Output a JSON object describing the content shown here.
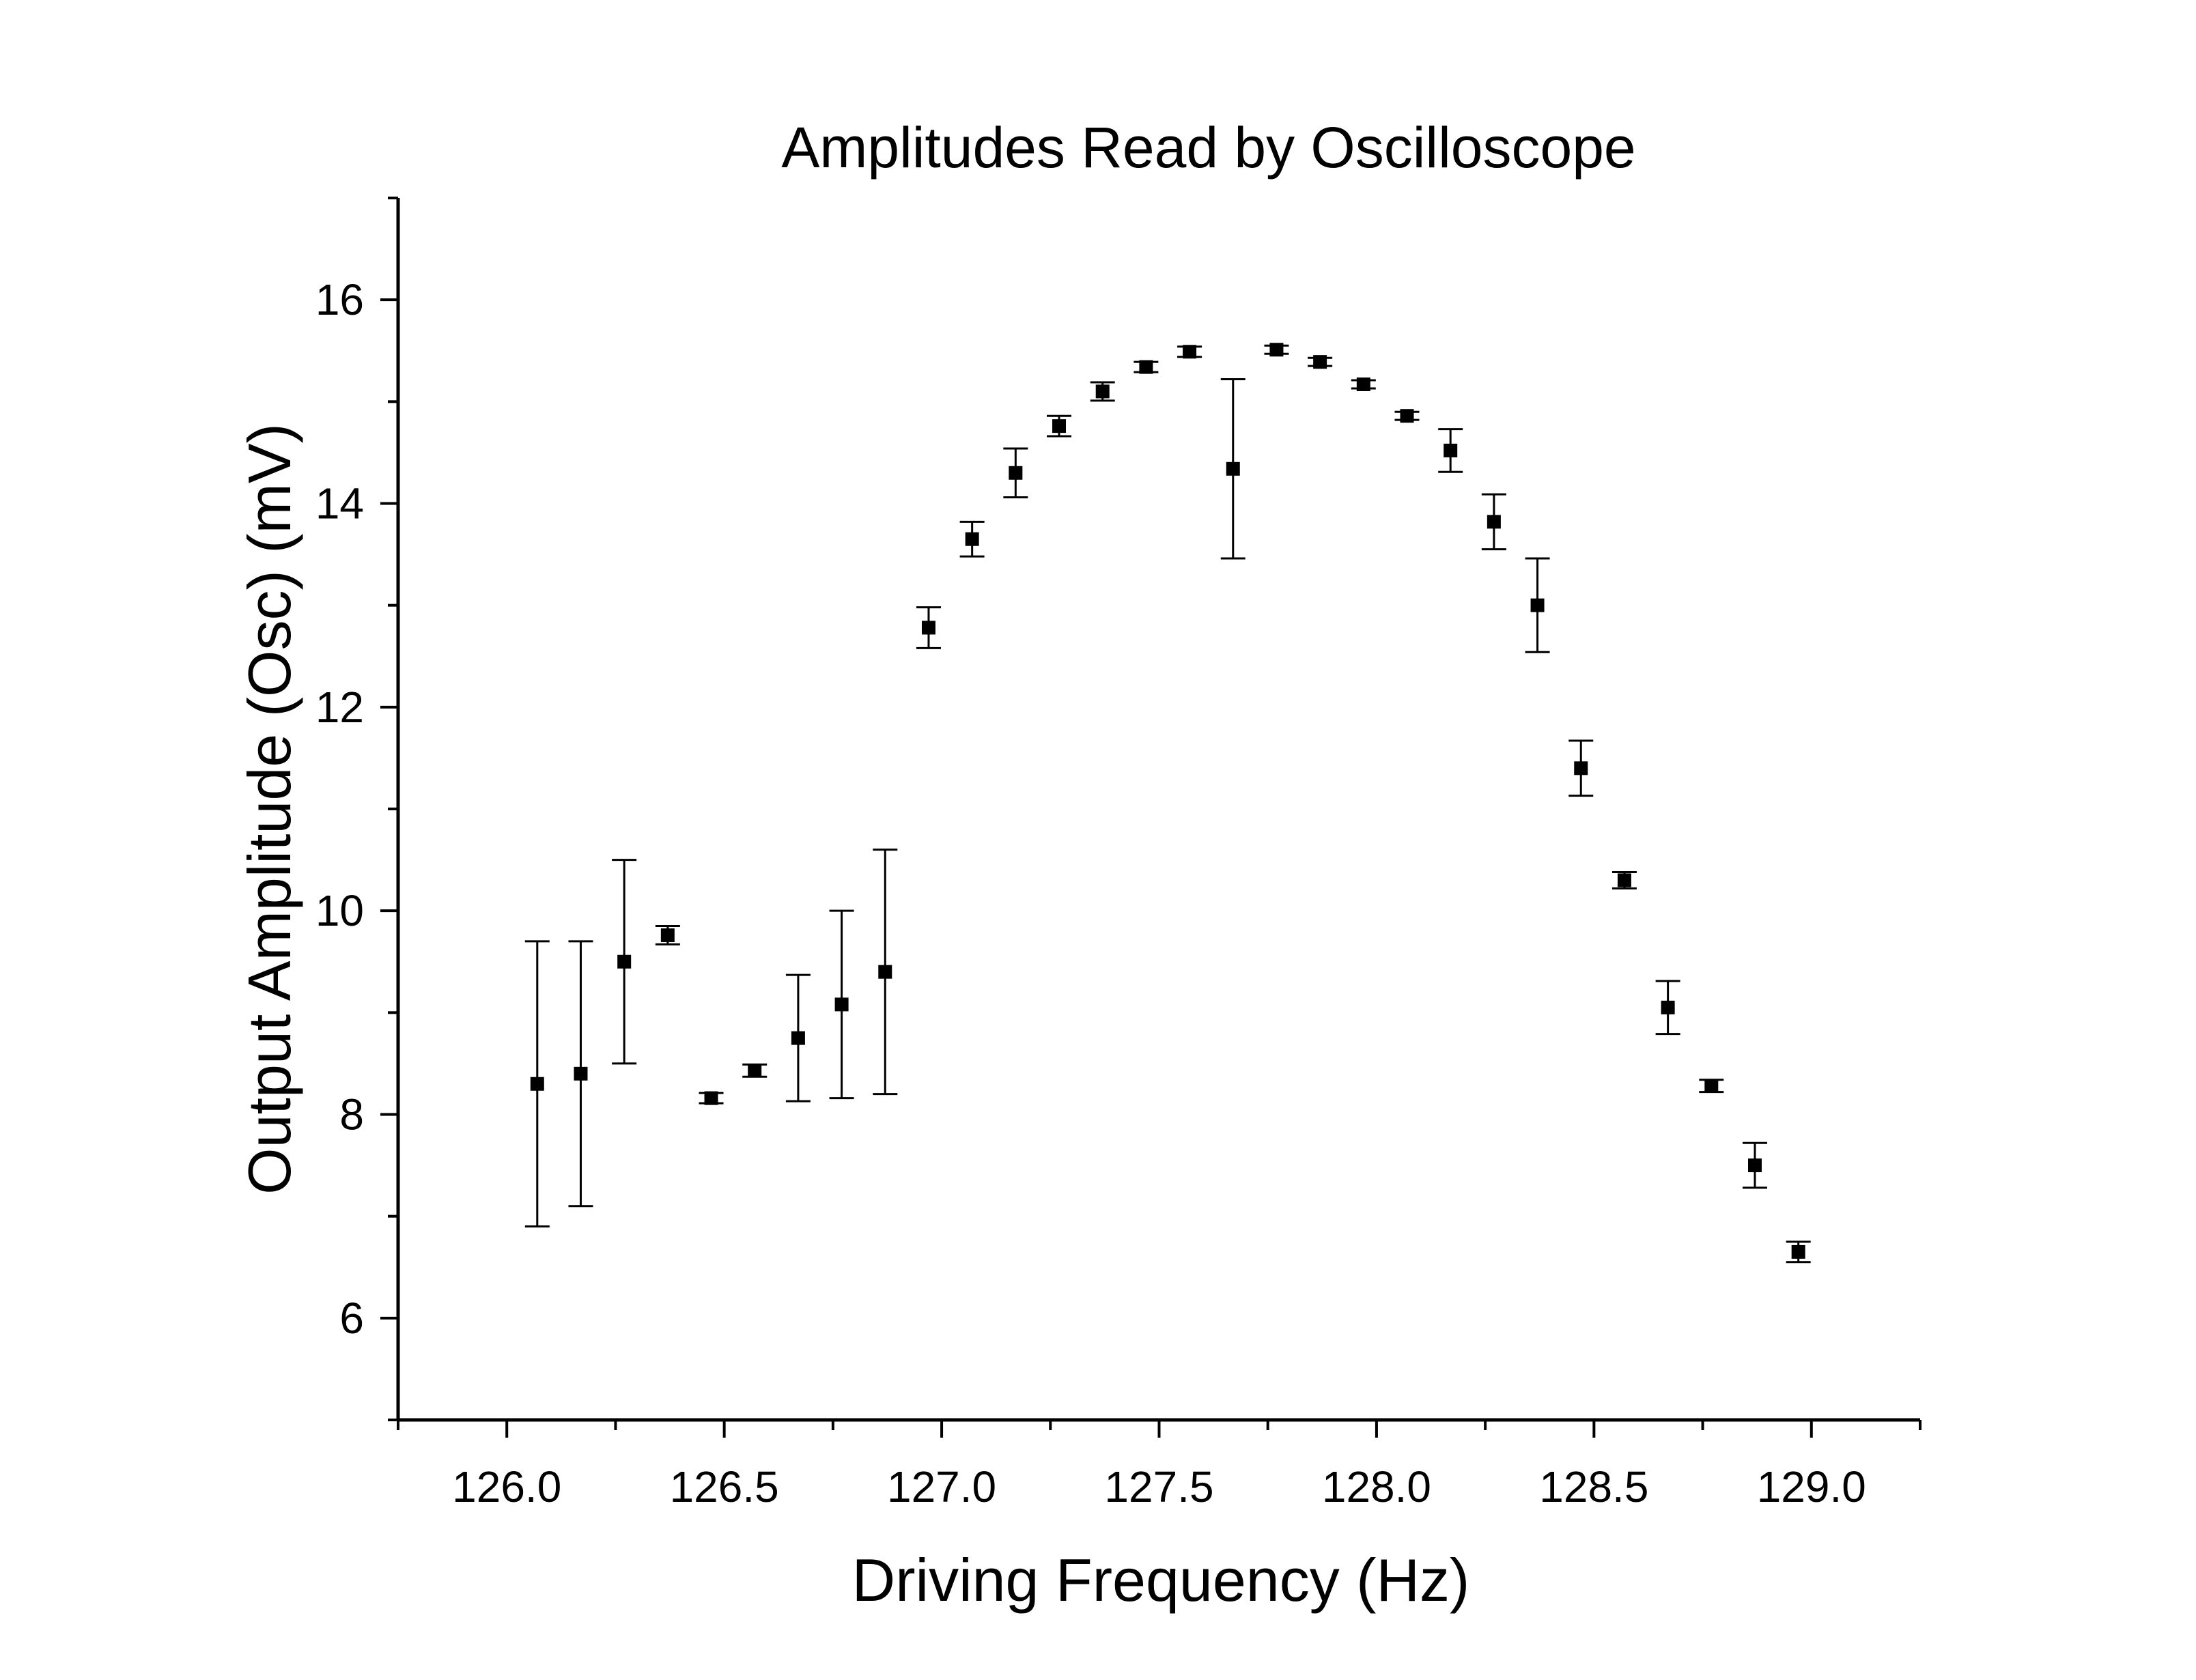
{
  "chart_data": {
    "type": "scatter",
    "title": "Amplitudes Read by Oscilloscope",
    "xlabel": "Driving Frequency (Hz)",
    "ylabel": "Output Amplitude (Osc) (mV)",
    "xlim": [
      125.75,
      129.25
    ],
    "ylim": [
      5,
      17
    ],
    "xticks": [
      126.0,
      126.5,
      127.0,
      127.5,
      128.0,
      128.5,
      129.0
    ],
    "xtick_labels": [
      "126.0",
      "126.5",
      "127.0",
      "127.5",
      "128.0",
      "128.5",
      "129.0"
    ],
    "yticks": [
      6,
      8,
      10,
      12,
      14,
      16
    ],
    "ytick_labels": [
      "6",
      "8",
      "10",
      "12",
      "14",
      "16"
    ],
    "grid": false,
    "legend": "none",
    "marker": "square",
    "color": "#000000",
    "series": [
      {
        "points": [
          {
            "x": 126.07,
            "y": 8.3,
            "err": 1.4
          },
          {
            "x": 126.17,
            "y": 8.4,
            "err": 1.3
          },
          {
            "x": 126.27,
            "y": 9.5,
            "err": 1.0
          },
          {
            "x": 126.37,
            "y": 9.76,
            "err": 0.09
          },
          {
            "x": 126.47,
            "y": 8.16,
            "err": 0.05
          },
          {
            "x": 126.57,
            "y": 8.43,
            "err": 0.06
          },
          {
            "x": 126.67,
            "y": 8.75,
            "err": 0.62
          },
          {
            "x": 126.77,
            "y": 9.08,
            "err": 0.92
          },
          {
            "x": 126.87,
            "y": 9.4,
            "err": 1.2
          },
          {
            "x": 126.97,
            "y": 12.78,
            "err": 0.2
          },
          {
            "x": 127.07,
            "y": 13.65,
            "err": 0.17
          },
          {
            "x": 127.17,
            "y": 14.3,
            "err": 0.24
          },
          {
            "x": 127.27,
            "y": 14.76,
            "err": 0.1
          },
          {
            "x": 127.37,
            "y": 15.1,
            "err": 0.09
          },
          {
            "x": 127.47,
            "y": 15.34,
            "err": 0.05
          },
          {
            "x": 127.57,
            "y": 15.49,
            "err": 0.05
          },
          {
            "x": 127.67,
            "y": 14.34,
            "err": 0.88
          },
          {
            "x": 127.77,
            "y": 15.51,
            "err": 0.04
          },
          {
            "x": 127.87,
            "y": 15.39,
            "err": 0.04
          },
          {
            "x": 127.97,
            "y": 15.17,
            "err": 0.04
          },
          {
            "x": 128.07,
            "y": 14.86,
            "err": 0.04
          },
          {
            "x": 128.17,
            "y": 14.52,
            "err": 0.21
          },
          {
            "x": 128.27,
            "y": 13.82,
            "err": 0.27
          },
          {
            "x": 128.37,
            "y": 13.0,
            "err": 0.46
          },
          {
            "x": 128.47,
            "y": 11.4,
            "err": 0.27
          },
          {
            "x": 128.57,
            "y": 10.3,
            "err": 0.08
          },
          {
            "x": 128.67,
            "y": 9.05,
            "err": 0.26
          },
          {
            "x": 128.77,
            "y": 8.28,
            "err": 0.06
          },
          {
            "x": 128.87,
            "y": 7.5,
            "err": 0.22
          },
          {
            "x": 128.97,
            "y": 6.65,
            "err": 0.1
          }
        ]
      }
    ]
  }
}
